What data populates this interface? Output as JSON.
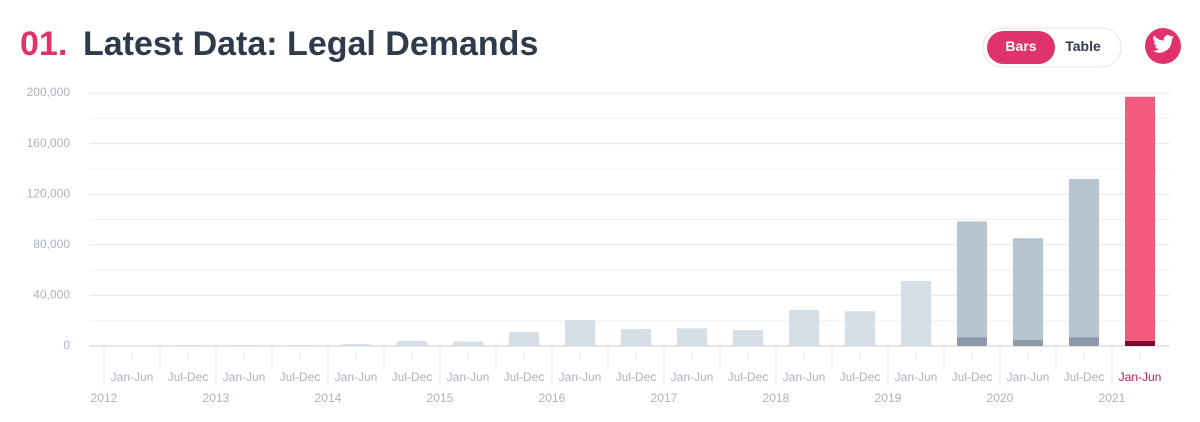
{
  "header": {
    "number": "01.",
    "title": "Latest Data: Legal Demands"
  },
  "toggle": {
    "active": "Bars",
    "inactive": "Table"
  },
  "chart_data": {
    "type": "bar",
    "stacked": true,
    "categories": [
      "Jan-Jun",
      "Jul-Dec",
      "Jan-Jun",
      "Jul-Dec",
      "Jan-Jun",
      "Jul-Dec",
      "Jan-Jun",
      "Jul-Dec",
      "Jan-Jun",
      "Jul-Dec",
      "Jan-Jun",
      "Jul-Dec",
      "Jan-Jun",
      "Jul-Dec",
      "Jan-Jun",
      "Jul-Dec",
      "Jan-Jun",
      "Jul-Dec",
      "Jan-Jun"
    ],
    "years": [
      "2012",
      "2013",
      "2014",
      "2015",
      "2016",
      "2017",
      "2018",
      "2019",
      "2020",
      "2021"
    ],
    "series": [
      {
        "colors": [
          "#8a9bab",
          "#8a9bab",
          "#8a9bab",
          "#8a9bab",
          "#8a9bab",
          "#8a9bab",
          "#8a9bab",
          "#8a9bab",
          "#8a9bab",
          "#8a9bab",
          "#8a9bab",
          "#8a9bab",
          "#8a9bab",
          "#8a9bab",
          "#8a9bab",
          "#8a9bab",
          "#8a9bab",
          "#8a9bab",
          "#7a0a30"
        ],
        "values": [
          0,
          0,
          0,
          0,
          0,
          0,
          0,
          0,
          0,
          0,
          0,
          0,
          0,
          0,
          0,
          7000,
          4700,
          7000,
          4000
        ]
      },
      {
        "colors": [
          "#d6dee7",
          "#d6dee7",
          "#d6dee7",
          "#d6dee7",
          "#d6dee7",
          "#d6dee7",
          "#d6dee7",
          "#d6dee7",
          "#d6dee7",
          "#d6dee7",
          "#d6dee7",
          "#d6dee7",
          "#d6dee7",
          "#d6dee7",
          "#d6dee7",
          "#b7c4d0",
          "#b7c4d0",
          "#b7c4d0",
          "#f25a80"
        ],
        "values": [
          500,
          800,
          800,
          800,
          1500,
          4000,
          3500,
          11000,
          20500,
          13500,
          14000,
          12500,
          28500,
          27500,
          51500,
          91500,
          80500,
          125000,
          193000
        ]
      }
    ],
    "ylim": [
      0,
      200000
    ],
    "yticks": [
      0,
      {
        "value": 40000,
        "label": "40,000"
      },
      {
        "value": 80000,
        "label": "80,000"
      },
      {
        "value": 120000,
        "label": "120,000"
      },
      {
        "value": 160000,
        "label": "160,000"
      },
      {
        "value": 200000,
        "label": "200,000"
      }
    ],
    "minor_yticks": [
      20000,
      60000,
      100000,
      140000,
      180000
    ],
    "grid": true,
    "highlight_index": 18,
    "highlight_color": "#c2185b"
  }
}
